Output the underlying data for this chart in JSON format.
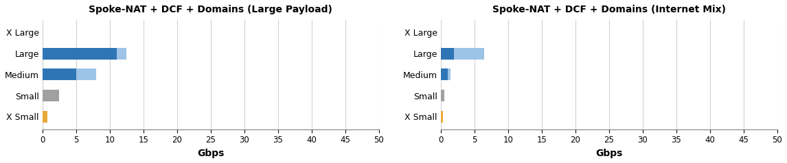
{
  "left_title": "Spoke-NAT + DCF + Domains (Large Payload)",
  "right_title": "Spoke-NAT + DCF + Domains (Internet Mix)",
  "categories": [
    "X Small",
    "Small",
    "Medium",
    "Large",
    "X Large"
  ],
  "left_bar1": [
    0.7,
    2.5,
    5.0,
    11.0,
    0.0
  ],
  "left_bar2": [
    0.0,
    0.0,
    8.0,
    12.5,
    0.0
  ],
  "right_bar1": [
    0.3,
    0.5,
    1.0,
    2.0,
    0.0
  ],
  "right_bar2": [
    0.0,
    0.0,
    1.5,
    6.5,
    0.0
  ],
  "color_xsmall": "#E8A838",
  "color_small": "#A0A0A0",
  "color_dark_blue": "#2E75B6",
  "color_light_blue": "#9DC3E6",
  "xlabel": "Gbps",
  "xlim": [
    0,
    50
  ],
  "xticks": [
    0,
    5,
    10,
    15,
    20,
    25,
    30,
    35,
    40,
    45,
    50
  ],
  "bar_height": 0.55,
  "background_color": "#ffffff",
  "grid_color": "#d0d0d0"
}
